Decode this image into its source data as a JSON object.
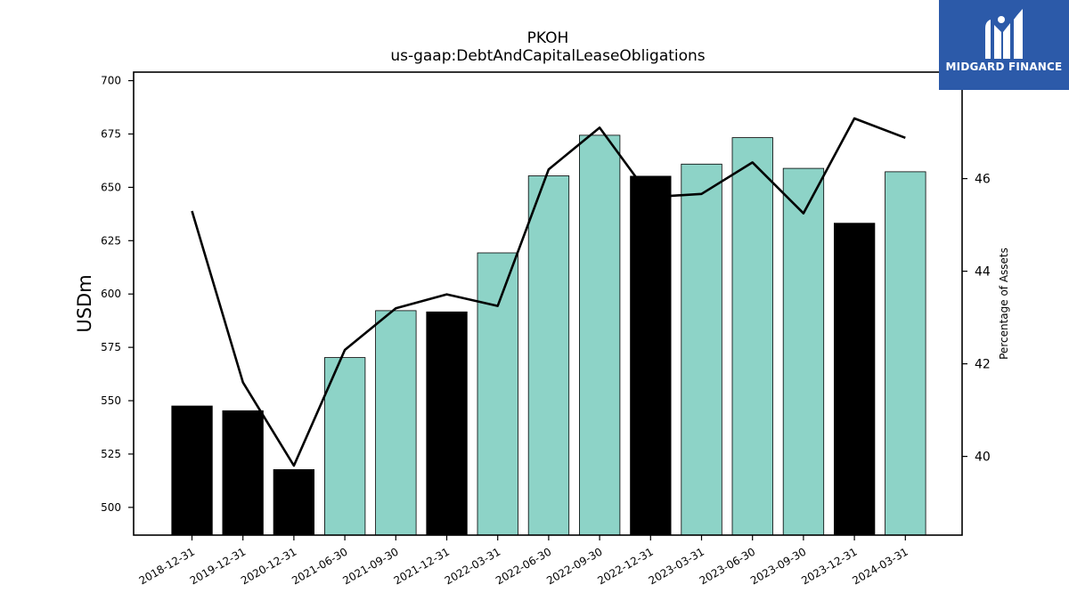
{
  "logo": {
    "text": "MIDGARD FINANCE",
    "icon": "midgard-m-logo-icon",
    "background": "#2c5aa9"
  },
  "chart_data": {
    "type": "bar",
    "title": "PKOH",
    "subtitle": "us-gaap:DebtAndCapitalLeaseObligations",
    "categories": [
      "2018-12-31",
      "2019-12-31",
      "2020-12-31",
      "2021-06-30",
      "2021-09-30",
      "2021-12-31",
      "2022-03-31",
      "2022-06-30",
      "2022-09-30",
      "2022-12-31",
      "2023-03-31",
      "2023-06-30",
      "2023-09-30",
      "2023-12-31",
      "2024-03-31"
    ],
    "series": [
      {
        "type": "bar",
        "axis": "left",
        "values": [
          547.5,
          545.3,
          517.7,
          570.2,
          592.2,
          591.6,
          619.3,
          655.4,
          674.4,
          655.2,
          660.9,
          673.3,
          658.9,
          633.2,
          657.3
        ],
        "colors": [
          "#000000",
          "#000000",
          "#000000",
          "#8dd3c7",
          "#8dd3c7",
          "#000000",
          "#8dd3c7",
          "#8dd3c7",
          "#8dd3c7",
          "#000000",
          "#8dd3c7",
          "#8dd3c7",
          "#8dd3c7",
          "#000000",
          "#8dd3c7"
        ]
      },
      {
        "type": "line",
        "axis": "right",
        "color": "#000000",
        "values": [
          45.3,
          41.6,
          39.8,
          42.3,
          43.2,
          43.5,
          43.25,
          46.2,
          47.1,
          45.6,
          45.67,
          46.35,
          45.25,
          47.3,
          46.88
        ]
      }
    ],
    "ylabel": "USDm",
    "ylabel_right": "Percentage of Assets",
    "ylim": [
      487,
      704
    ],
    "ylim_right": [
      38.3,
      48.3
    ],
    "yticks": [
      500,
      525,
      550,
      575,
      600,
      625,
      650,
      675,
      700
    ],
    "yticks_right": [
      40,
      42,
      44,
      46
    ],
    "grid": false,
    "legend": "none"
  }
}
